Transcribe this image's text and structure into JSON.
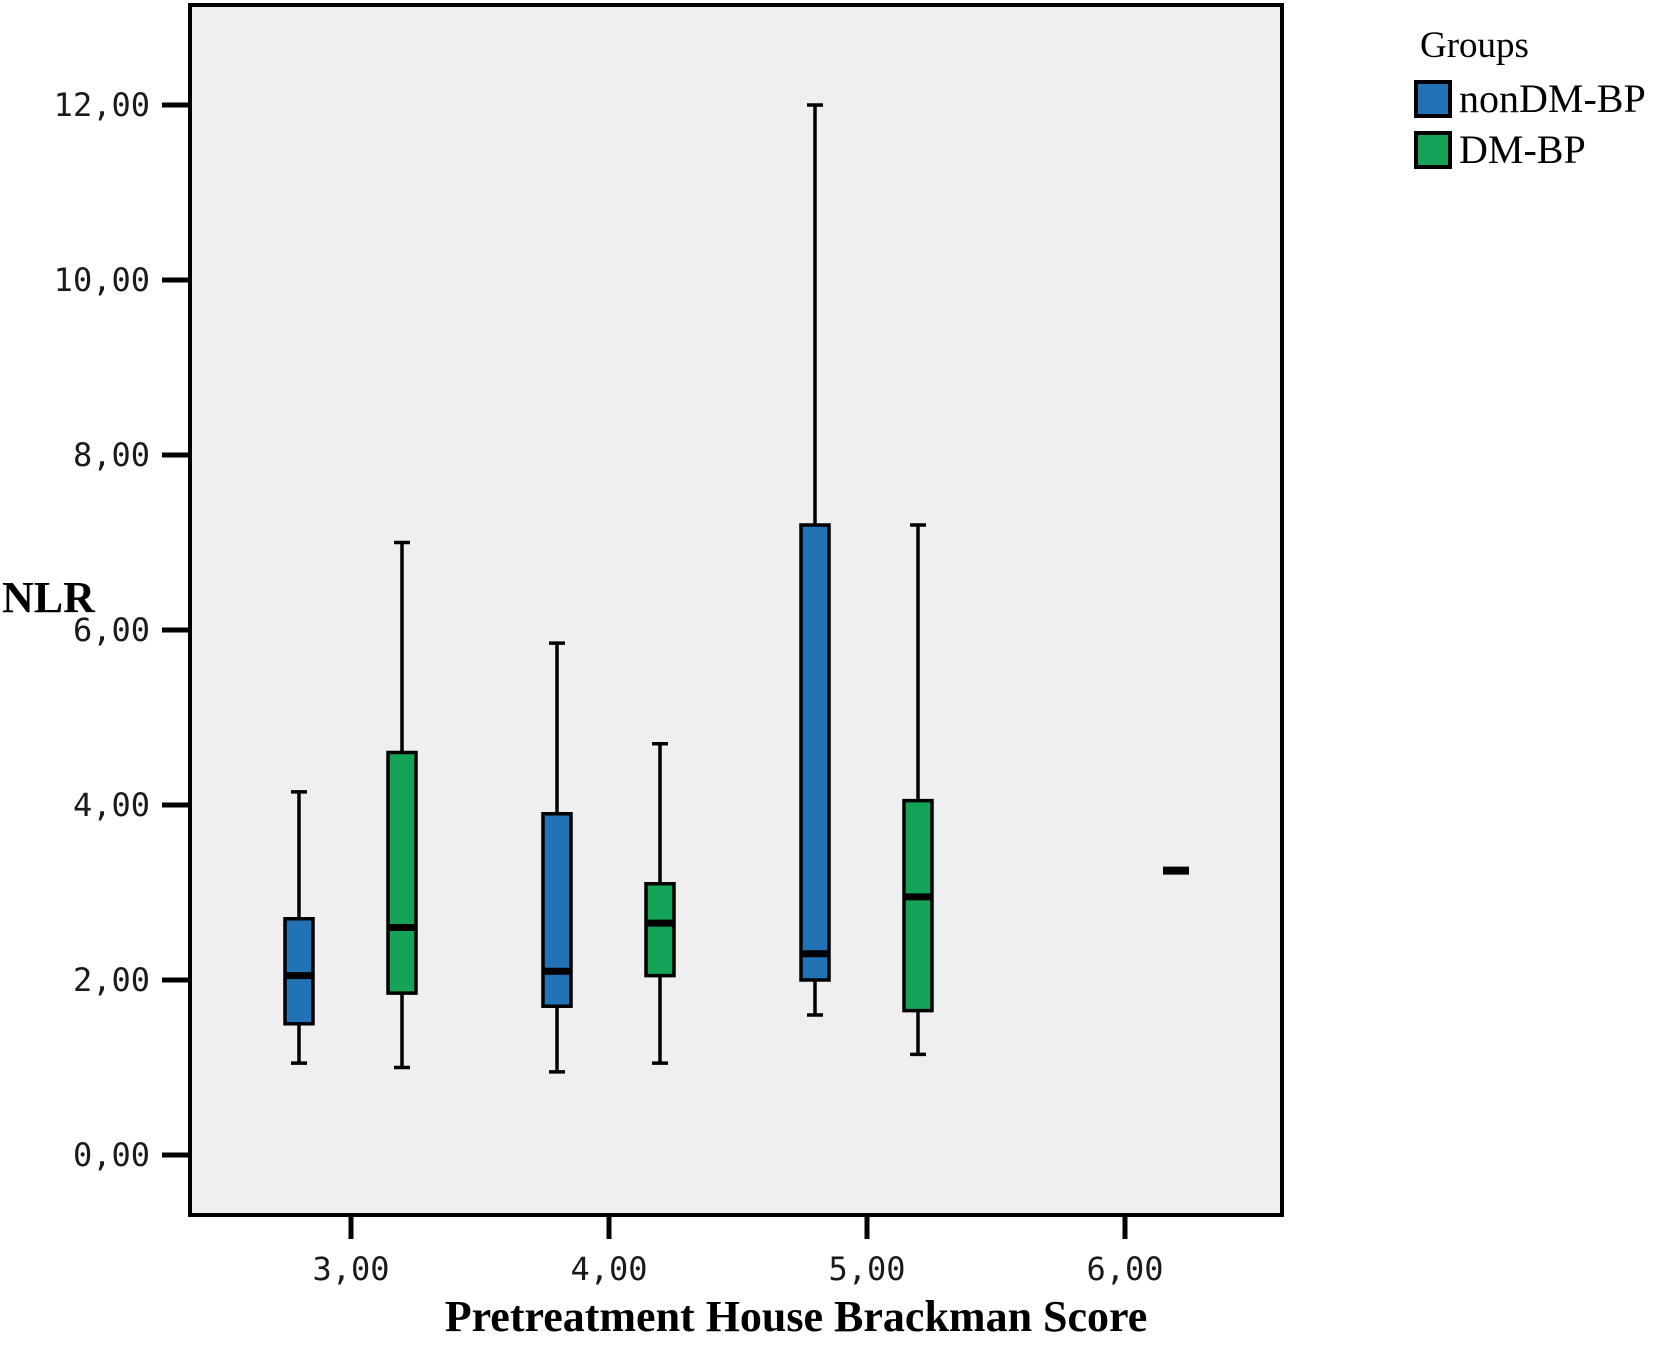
{
  "chart_data": {
    "type": "boxplot",
    "title": "",
    "xlabel": "Pretreatment House Brackman Score",
    "ylabel": "NLR",
    "plot_bg": "#efefef",
    "frame_color": "#000000",
    "grid": false,
    "ylim": [
      -0.7,
      13.1
    ],
    "y_ticks": [
      {
        "label": "0,00",
        "value": 0
      },
      {
        "label": "2,00",
        "value": 2
      },
      {
        "label": "4,00",
        "value": 4
      },
      {
        "label": "6,00",
        "value": 6
      },
      {
        "label": "8,00",
        "value": 8
      },
      {
        "label": "10,00",
        "value": 10
      },
      {
        "label": "12,00",
        "value": 12
      }
    ],
    "x_categories": [
      {
        "label": "3,00"
      },
      {
        "label": "4,00"
      },
      {
        "label": "5,00"
      },
      {
        "label": "6,00"
      }
    ],
    "legend": {
      "title": "Groups",
      "position": "top-right",
      "entries": [
        {
          "label": "nonDM-BP",
          "color": "#2272b6"
        },
        {
          "label": "DM-BP",
          "color": "#15a457"
        }
      ]
    },
    "series": [
      {
        "name": "nonDM-BP",
        "color": "#2272b6",
        "boxes": [
          {
            "category": "3,00",
            "low": 1.05,
            "q1": 1.5,
            "median": 2.05,
            "q3": 2.7,
            "high": 4.15
          },
          {
            "category": "4,00",
            "low": 0.95,
            "q1": 1.7,
            "median": 2.1,
            "q3": 3.9,
            "high": 5.85
          },
          {
            "category": "5,00",
            "low": 1.6,
            "q1": 2.0,
            "median": 2.3,
            "q3": 7.2,
            "high": 12.0
          }
        ]
      },
      {
        "name": "DM-BP",
        "color": "#15a457",
        "boxes": [
          {
            "category": "3,00",
            "low": 1.0,
            "q1": 1.85,
            "median": 2.6,
            "q3": 4.6,
            "high": 7.0
          },
          {
            "category": "4,00",
            "low": 1.05,
            "q1": 2.05,
            "median": 2.65,
            "q3": 3.1,
            "high": 4.7
          },
          {
            "category": "5,00",
            "low": 1.15,
            "q1": 1.65,
            "median": 2.95,
            "q3": 4.05,
            "high": 7.2
          },
          {
            "category": "6,00",
            "median": 3.25,
            "single_value": true
          }
        ]
      }
    ]
  }
}
